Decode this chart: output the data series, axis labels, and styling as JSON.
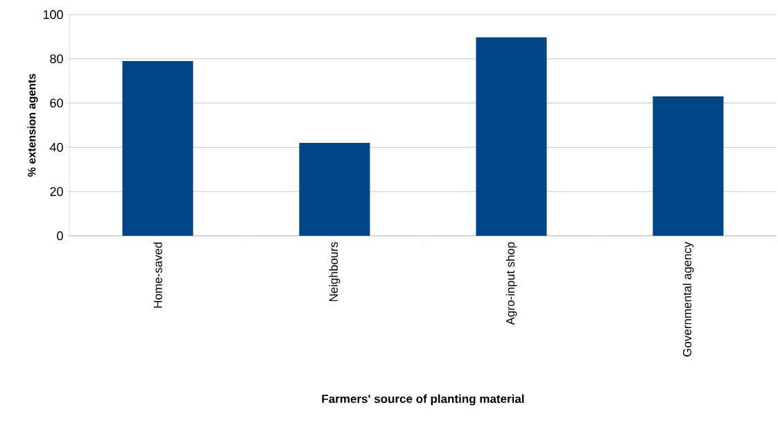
{
  "chart_data": {
    "type": "bar",
    "xlabel": "Farmers' source of planting material",
    "ylabel": "% extension agents",
    "categories": [
      "Home-saved",
      "Neighbours",
      "Agro-input shop",
      "Governmental agency"
    ],
    "values": [
      79,
      42,
      89.7,
      63
    ],
    "color": "#004586",
    "ylim": [
      0,
      100
    ],
    "yticks": [
      0,
      20,
      40,
      60,
      80,
      100
    ],
    "grid": "y"
  }
}
